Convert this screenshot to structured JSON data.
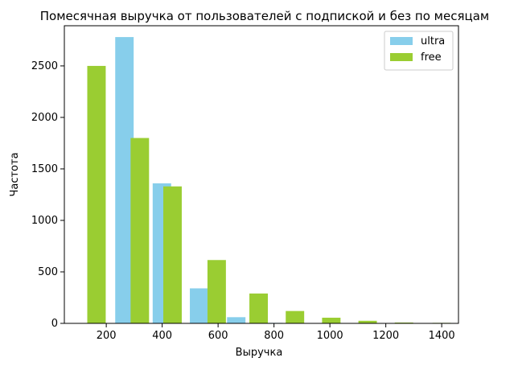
{
  "chart_data": {
    "type": "bar",
    "title": "Помесячная выручка от пользователей с подпиской и без по месяцам",
    "xlabel": "Выручка",
    "ylabel": "Частота",
    "xlim": [
      50,
      1460
    ],
    "ylim": [
      0,
      2890
    ],
    "x_ticks": [
      200,
      400,
      600,
      800,
      1000,
      1200,
      1400
    ],
    "y_ticks": [
      0,
      500,
      1000,
      1500,
      2000,
      2500
    ],
    "grid": false,
    "legend_position": "top-right",
    "bin_width": 66,
    "series": [
      {
        "name": "ultra",
        "color": "#87ceeb",
        "x": [
          265,
          399,
          532,
          665,
          798
        ],
        "values": [
          2780,
          1360,
          340,
          60,
          5
        ]
      },
      {
        "name": "free",
        "color": "#9acd32",
        "x": [
          165,
          320,
          437,
          595,
          745,
          875,
          1005,
          1135,
          1265,
          1400
        ],
        "values": [
          2500,
          1800,
          1330,
          615,
          290,
          120,
          55,
          25,
          8,
          5
        ]
      }
    ]
  }
}
